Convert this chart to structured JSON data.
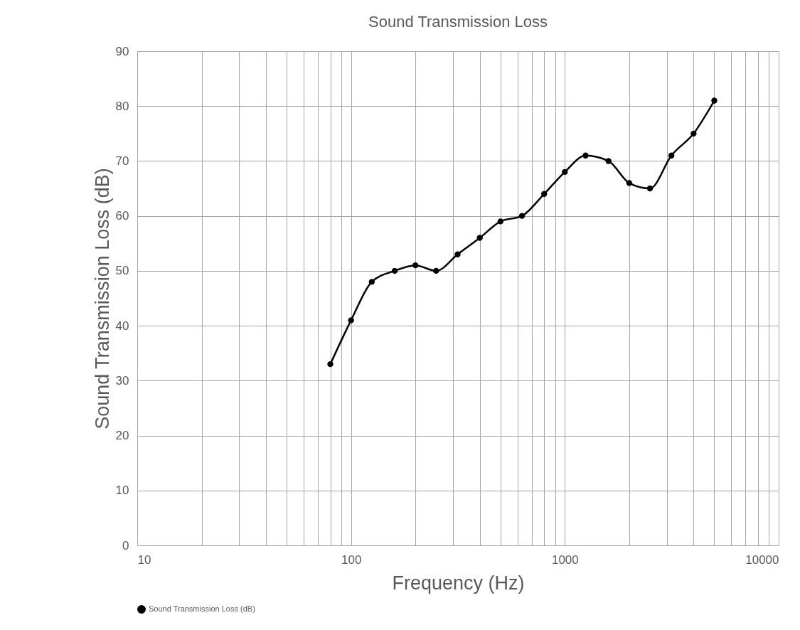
{
  "chart_data": {
    "type": "line",
    "title": "Sound Transmission Loss",
    "xlabel": "Frequency (Hz)",
    "ylabel": "Sound Transmission Loss (dB)",
    "x": [
      80,
      100,
      125,
      160,
      200,
      250,
      315,
      400,
      500,
      630,
      800,
      1000,
      1250,
      1600,
      2000,
      2500,
      3150,
      4000,
      5000
    ],
    "series": [
      {
        "name": "Sound Transmission Loss (dB)",
        "color": "#000000",
        "values": [
          33,
          41,
          48,
          50,
          51,
          50,
          53,
          56,
          59,
          60,
          64,
          68,
          71,
          70,
          66,
          65,
          71,
          75,
          81
        ]
      }
    ],
    "xlim": [
      10,
      10000
    ],
    "xticks": [
      10,
      {
        "value": 20,
        "label": null
      },
      {
        "value": 30,
        "label": null
      },
      {
        "value": 40,
        "label": null
      },
      {
        "value": 50,
        "label": null
      },
      {
        "value": 60,
        "label": null
      },
      {
        "value": 70,
        "label": null
      },
      {
        "value": 80,
        "label": null
      },
      {
        "value": 90,
        "label": null
      },
      100,
      {
        "value": 200,
        "label": null
      },
      {
        "value": 300,
        "label": null
      },
      {
        "value": 400,
        "label": null
      },
      {
        "value": 500,
        "label": null
      },
      {
        "value": 600,
        "label": null
      },
      {
        "value": 700,
        "label": null
      },
      {
        "value": 800,
        "label": null
      },
      {
        "value": 900,
        "label": null
      },
      1000,
      {
        "value": 2000,
        "label": null
      },
      {
        "value": 3000,
        "label": null
      },
      {
        "value": 4000,
        "label": null
      },
      {
        "value": 5000,
        "label": null
      },
      {
        "value": 6000,
        "label": null
      },
      {
        "value": 7000,
        "label": null
      },
      {
        "value": 8000,
        "label": null
      },
      {
        "value": 9000,
        "label": null
      },
      10000
    ],
    "ylim": [
      0,
      90
    ],
    "yticks": [
      0,
      10,
      20,
      30,
      40,
      50,
      60,
      70,
      80,
      90
    ],
    "log": "x",
    "grid": true,
    "legend": "bottom",
    "marker": "circle",
    "line_style": "solid"
  }
}
